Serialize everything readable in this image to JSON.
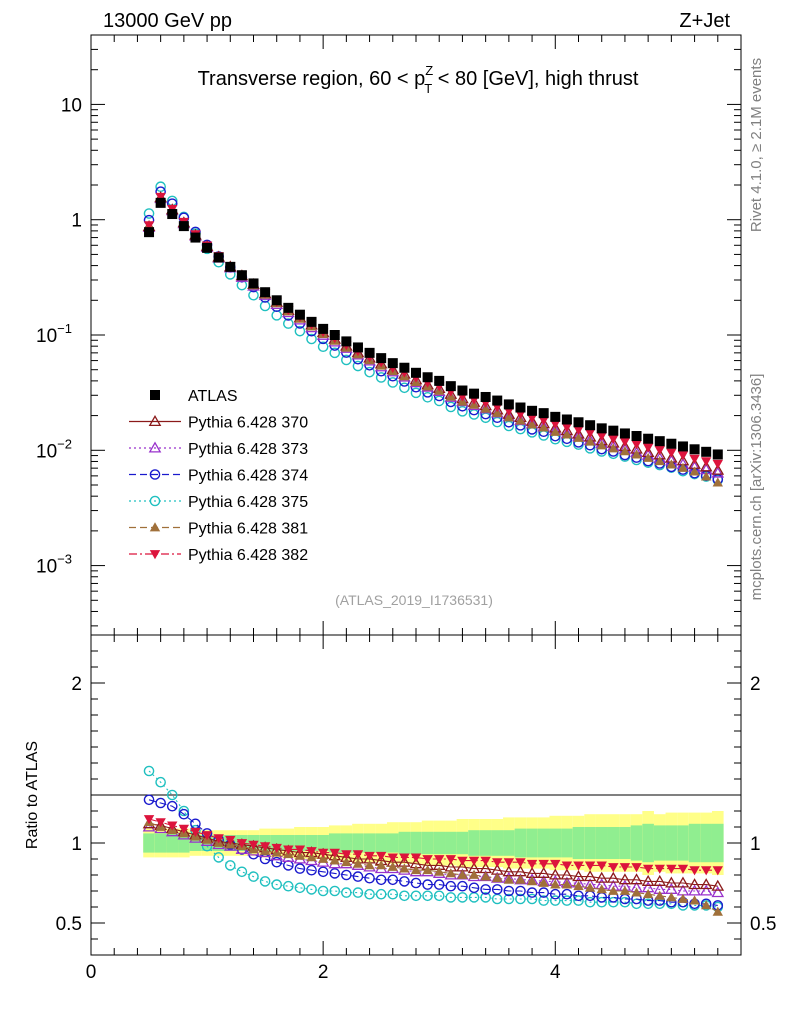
{
  "header": {
    "left": "13000 GeV pp",
    "right": "Z+Jet"
  },
  "side": {
    "top": "Rivet 4.1.0, ≥ 2.1M events",
    "bottom": "mcplots.cern.ch [arXiv:1306.3436]"
  },
  "chart_data": {
    "type": "scatter",
    "title": "Transverse region, 60 < p_T^Z < 80 [GeV], high thrust",
    "title_parts": {
      "pre": "Transverse region, 60 < p",
      "sup": "Z",
      "sub": "T",
      "post": " < 80 [GeV], high thrust"
    },
    "watermark": "(ATLAS_2019_I1736531)",
    "xlabel": "",
    "xlim": [
      0,
      5.6
    ],
    "x_ticks": [
      0,
      2,
      4
    ],
    "main": {
      "yscale": "log",
      "ylim": [
        0.00025,
        40
      ],
      "y_ticks": [
        {
          "v": 10,
          "base": "10",
          "exp": ""
        },
        {
          "v": 1,
          "base": "1",
          "exp": ""
        },
        {
          "v": 0.1,
          "base": "10",
          "exp": "−1"
        },
        {
          "v": 0.01,
          "base": "10",
          "exp": "−2"
        },
        {
          "v": 0.001,
          "base": "10",
          "exp": "−3"
        }
      ]
    },
    "ratio": {
      "ylabel": "Ratio to ATLAS",
      "ylim": [
        0.3,
        2.3
      ],
      "y_ticks": [
        0.5,
        1,
        2
      ]
    },
    "x": [
      0.5,
      0.6,
      0.7,
      0.8,
      0.9,
      1.0,
      1.1,
      1.2,
      1.3,
      1.4,
      1.5,
      1.6,
      1.7,
      1.8,
      1.9,
      2.0,
      2.1,
      2.2,
      2.3,
      2.4,
      2.5,
      2.6,
      2.7,
      2.8,
      2.9,
      3.0,
      3.1,
      3.2,
      3.3,
      3.4,
      3.5,
      3.6,
      3.7,
      3.8,
      3.9,
      4.0,
      4.1,
      4.2,
      4.3,
      4.4,
      4.5,
      4.6,
      4.7,
      4.8,
      4.9,
      5.0,
      5.1,
      5.2,
      5.3,
      5.4
    ],
    "data": {
      "name": "ATLAS",
      "values": [
        0.78,
        1.4,
        1.12,
        0.88,
        0.7,
        0.57,
        0.47,
        0.39,
        0.33,
        0.28,
        0.235,
        0.2,
        0.172,
        0.15,
        0.13,
        0.113,
        0.1,
        0.088,
        0.078,
        0.07,
        0.063,
        0.057,
        0.052,
        0.047,
        0.043,
        0.04,
        0.036,
        0.033,
        0.031,
        0.029,
        0.027,
        0.025,
        0.0235,
        0.022,
        0.021,
        0.0195,
        0.0185,
        0.0175,
        0.0165,
        0.0155,
        0.0148,
        0.014,
        0.0133,
        0.0126,
        0.012,
        0.0114,
        0.0108,
        0.0102,
        0.0097,
        0.0092
      ]
    },
    "band_inner": [
      0.06,
      0.06,
      0.06,
      0.06,
      0.05,
      0.05,
      0.05,
      0.05,
      0.05,
      0.05,
      0.05,
      0.05,
      0.05,
      0.05,
      0.05,
      0.05,
      0.06,
      0.06,
      0.06,
      0.06,
      0.06,
      0.06,
      0.07,
      0.07,
      0.07,
      0.07,
      0.07,
      0.07,
      0.08,
      0.08,
      0.08,
      0.08,
      0.09,
      0.09,
      0.09,
      0.09,
      0.09,
      0.1,
      0.1,
      0.1,
      0.1,
      0.1,
      0.11,
      0.12,
      0.11,
      0.11,
      0.11,
      0.12,
      0.12,
      0.12
    ],
    "band_outer": [
      0.09,
      0.09,
      0.09,
      0.09,
      0.08,
      0.08,
      0.08,
      0.08,
      0.08,
      0.08,
      0.09,
      0.09,
      0.09,
      0.1,
      0.1,
      0.1,
      0.11,
      0.11,
      0.12,
      0.12,
      0.12,
      0.13,
      0.13,
      0.13,
      0.14,
      0.14,
      0.14,
      0.15,
      0.15,
      0.15,
      0.15,
      0.16,
      0.16,
      0.16,
      0.16,
      0.17,
      0.17,
      0.17,
      0.18,
      0.18,
      0.18,
      0.18,
      0.18,
      0.2,
      0.18,
      0.19,
      0.19,
      0.19,
      0.19,
      0.2
    ],
    "series": [
      {
        "name": "Pythia 6.428 370",
        "color": "#8b1a1a",
        "marker": "triangle-up-open",
        "dash": "solid",
        "ratio": [
          1.12,
          1.11,
          1.09,
          1.07,
          1.05,
          1.03,
          1.01,
          1.0,
          0.99,
          0.98,
          0.97,
          0.96,
          0.95,
          0.94,
          0.94,
          0.93,
          0.92,
          0.91,
          0.9,
          0.9,
          0.89,
          0.88,
          0.88,
          0.87,
          0.86,
          0.86,
          0.85,
          0.85,
          0.84,
          0.84,
          0.83,
          0.82,
          0.82,
          0.81,
          0.81,
          0.8,
          0.8,
          0.79,
          0.79,
          0.78,
          0.78,
          0.77,
          0.77,
          0.76,
          0.76,
          0.75,
          0.75,
          0.74,
          0.74,
          0.73
        ]
      },
      {
        "name": "Pythia 6.428 373",
        "color": "#9932cc",
        "marker": "triangle-up-open",
        "dash": "dotted",
        "ratio": [
          1.1,
          1.09,
          1.07,
          1.05,
          1.03,
          1.01,
          0.99,
          0.98,
          0.96,
          0.95,
          0.94,
          0.92,
          0.91,
          0.9,
          0.89,
          0.88,
          0.87,
          0.87,
          0.86,
          0.85,
          0.84,
          0.84,
          0.83,
          0.82,
          0.82,
          0.81,
          0.8,
          0.8,
          0.79,
          0.79,
          0.78,
          0.78,
          0.77,
          0.77,
          0.76,
          0.76,
          0.75,
          0.75,
          0.74,
          0.74,
          0.73,
          0.73,
          0.72,
          0.72,
          0.71,
          0.71,
          0.7,
          0.7,
          0.7,
          0.69
        ]
      },
      {
        "name": "Pythia 6.428 374",
        "color": "#1a1acd",
        "marker": "circle-open",
        "dash": "dashed",
        "ratio": [
          1.27,
          1.25,
          1.23,
          1.18,
          1.12,
          1.06,
          1.02,
          0.99,
          0.96,
          0.93,
          0.9,
          0.88,
          0.86,
          0.84,
          0.83,
          0.82,
          0.81,
          0.8,
          0.79,
          0.78,
          0.77,
          0.77,
          0.76,
          0.75,
          0.74,
          0.74,
          0.73,
          0.73,
          0.72,
          0.71,
          0.71,
          0.7,
          0.7,
          0.69,
          0.69,
          0.68,
          0.68,
          0.67,
          0.67,
          0.66,
          0.66,
          0.65,
          0.65,
          0.64,
          0.64,
          0.63,
          0.63,
          0.62,
          0.62,
          0.61
        ]
      },
      {
        "name": "Pythia 6.428 375",
        "color": "#20c0c0",
        "marker": "circle-open",
        "dash": "dotted",
        "ratio": [
          1.45,
          1.38,
          1.3,
          1.2,
          1.08,
          0.98,
          0.91,
          0.86,
          0.82,
          0.79,
          0.76,
          0.74,
          0.73,
          0.72,
          0.71,
          0.7,
          0.7,
          0.69,
          0.69,
          0.68,
          0.68,
          0.68,
          0.67,
          0.67,
          0.67,
          0.67,
          0.66,
          0.66,
          0.66,
          0.66,
          0.65,
          0.65,
          0.65,
          0.65,
          0.64,
          0.64,
          0.64,
          0.64,
          0.63,
          0.63,
          0.63,
          0.63,
          0.62,
          0.62,
          0.62,
          0.62,
          0.61,
          0.61,
          0.61,
          0.6
        ]
      },
      {
        "name": "Pythia 6.428 381",
        "color": "#a0703a",
        "marker": "triangle-up-filled",
        "dash": "dashed",
        "ratio": [
          1.13,
          1.1,
          1.08,
          1.06,
          1.04,
          1.02,
          1.0,
          0.99,
          0.98,
          0.96,
          0.95,
          0.94,
          0.93,
          0.92,
          0.91,
          0.9,
          0.89,
          0.88,
          0.87,
          0.86,
          0.86,
          0.85,
          0.84,
          0.83,
          0.83,
          0.82,
          0.81,
          0.8,
          0.8,
          0.79,
          0.78,
          0.77,
          0.77,
          0.76,
          0.75,
          0.74,
          0.74,
          0.73,
          0.72,
          0.71,
          0.7,
          0.7,
          0.69,
          0.68,
          0.67,
          0.66,
          0.65,
          0.64,
          0.61,
          0.57
        ]
      },
      {
        "name": "Pythia 6.428 382",
        "color": "#dc143c",
        "marker": "triangle-down-filled",
        "dash": "dashdot",
        "ratio": [
          1.15,
          1.13,
          1.11,
          1.09,
          1.07,
          1.05,
          1.03,
          1.02,
          1.0,
          0.99,
          0.98,
          0.97,
          0.96,
          0.96,
          0.95,
          0.94,
          0.94,
          0.93,
          0.93,
          0.92,
          0.92,
          0.91,
          0.91,
          0.91,
          0.9,
          0.9,
          0.9,
          0.89,
          0.89,
          0.89,
          0.88,
          0.88,
          0.88,
          0.87,
          0.87,
          0.87,
          0.86,
          0.86,
          0.86,
          0.86,
          0.85,
          0.85,
          0.85,
          0.84,
          0.84,
          0.84,
          0.84,
          0.83,
          0.83,
          0.83
        ]
      }
    ]
  }
}
